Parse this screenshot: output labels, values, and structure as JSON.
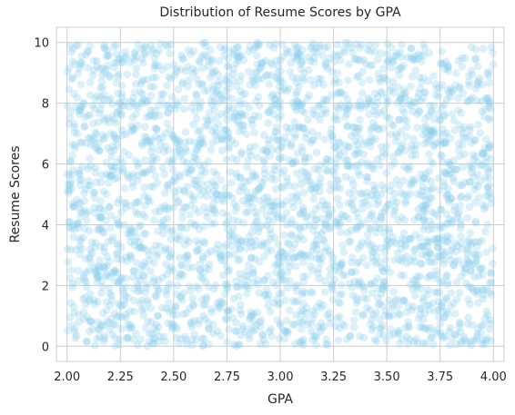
{
  "chart_data": {
    "type": "scatter",
    "title": "Distribution of Resume Scores by GPA",
    "xlabel": "GPA",
    "ylabel": "Resume Scores",
    "xlim": [
      1.95,
      4.05
    ],
    "ylim": [
      -0.5,
      10.5
    ],
    "xticks": [
      2.0,
      2.25,
      2.5,
      2.75,
      3.0,
      3.25,
      3.5,
      3.75,
      4.0
    ],
    "xtick_labels": [
      "2.00",
      "2.25",
      "2.50",
      "2.75",
      "3.00",
      "3.25",
      "3.50",
      "3.75",
      "4.00"
    ],
    "yticks": [
      0,
      2,
      4,
      6,
      8,
      10
    ],
    "ytick_labels": [
      "0",
      "2",
      "4",
      "6",
      "8",
      "10"
    ],
    "grid": true,
    "point_color": "#87ceeb",
    "point_alpha": 0.3,
    "estimated_point_count": 3000,
    "x_distribution": "uniform",
    "x_range": [
      2.0,
      4.0
    ],
    "y_distribution": "uniform",
    "y_range": [
      0,
      10
    ]
  }
}
